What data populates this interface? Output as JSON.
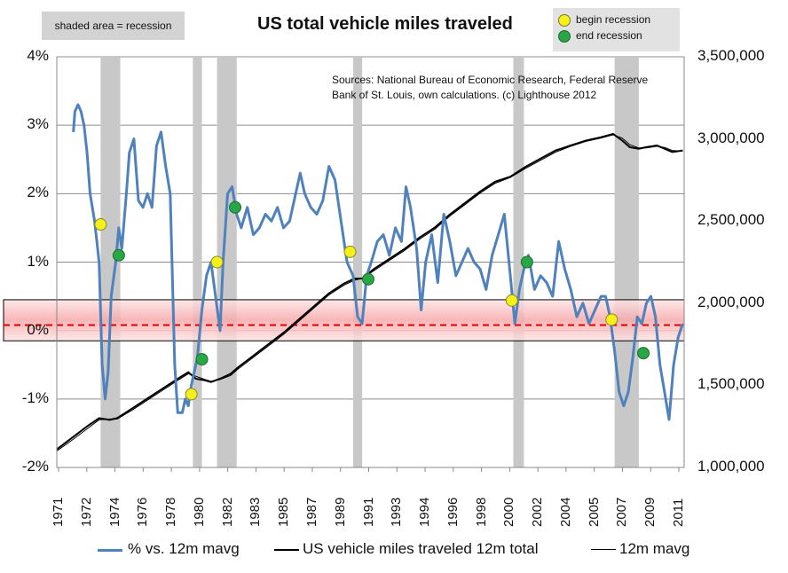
{
  "chart_data": {
    "type": "line",
    "title": "US total vehicle miles traveled",
    "shade_note": "shaded area = recession",
    "sources": "Sources: National Bureau of Economic Research, Federal Reserve Bank of St. Louis, own calculations. (c) Lighthouse 2012",
    "marker_legend": [
      {
        "label": "begin recession",
        "color": "#f5ef1a"
      },
      {
        "label": "end recession",
        "color": "#27a745"
      }
    ],
    "x_tick_labels": [
      "1971",
      "1972",
      "1974",
      "1976",
      "1978",
      "1980",
      "1982",
      "1983",
      "1985",
      "1987",
      "1989",
      "1991",
      "1993",
      "1994",
      "1996",
      "1998",
      "2000",
      "2002",
      "2004",
      "2005",
      "2007",
      "2009",
      "2011"
    ],
    "y_left": {
      "min": -0.02,
      "max": 0.04,
      "ticks": [
        "-2%",
        "-1%",
        "0%",
        "1%",
        "2%",
        "3%",
        "4%"
      ]
    },
    "y_right": {
      "min": 1000000,
      "max": 3500000,
      "ticks": [
        "1,000,000",
        "1,500,000",
        "2,000,000",
        "2,500,000",
        "3,000,000",
        "3,500,000"
      ]
    },
    "recessions": [
      [
        1973.9,
        1975.2
      ],
      [
        1980.0,
        1980.6
      ],
      [
        1981.6,
        1982.9
      ],
      [
        1990.6,
        1991.2
      ],
      [
        2001.2,
        2001.9
      ],
      [
        2007.9,
        2009.5
      ]
    ],
    "band": {
      "low": -0.0015,
      "high": 0.0045,
      "dashed": 0.0008
    },
    "series": [
      {
        "name": "% vs. 12m mavg",
        "axis": "left",
        "color": "#4f81bd",
        "x": [
          1972.1,
          1972.2,
          1972.4,
          1972.6,
          1972.8,
          1973.0,
          1973.2,
          1973.5,
          1973.8,
          1974.0,
          1974.2,
          1974.4,
          1974.6,
          1974.9,
          1975.1,
          1975.3,
          1975.6,
          1975.8,
          1976.1,
          1976.4,
          1976.7,
          1977.0,
          1977.3,
          1977.6,
          1977.9,
          1978.2,
          1978.5,
          1978.8,
          1979.0,
          1979.3,
          1979.5,
          1979.7,
          1979.9,
          1980.1,
          1980.3,
          1980.6,
          1980.9,
          1981.2,
          1981.5,
          1981.8,
          1982.0,
          1982.3,
          1982.6,
          1982.9,
          1983.2,
          1983.6,
          1984.0,
          1984.4,
          1984.8,
          1985.2,
          1985.6,
          1986.0,
          1986.4,
          1986.8,
          1987.1,
          1987.4,
          1987.8,
          1988.2,
          1988.6,
          1989.0,
          1989.4,
          1989.8,
          1990.2,
          1990.6,
          1990.9,
          1991.2,
          1991.5,
          1991.8,
          1992.2,
          1992.6,
          1993.0,
          1993.4,
          1993.8,
          1994.1,
          1994.4,
          1994.8,
          1995.1,
          1995.4,
          1995.8,
          1996.2,
          1996.6,
          1997.0,
          1997.4,
          1997.8,
          1998.2,
          1998.6,
          1999.0,
          1999.4,
          1999.8,
          2000.2,
          2000.6,
          2001.0,
          2001.3,
          2001.6,
          2001.9,
          2002.2,
          2002.6,
          2003.0,
          2003.4,
          2003.8,
          2004.2,
          2004.6,
          2005.0,
          2005.4,
          2005.8,
          2006.2,
          2006.6,
          2007.0,
          2007.3,
          2007.6,
          2007.9,
          2008.2,
          2008.5,
          2008.8,
          2009.1,
          2009.4,
          2009.7,
          2010.0,
          2010.3,
          2010.6,
          2010.9,
          2011.2,
          2011.5,
          2011.8,
          2012.1,
          2012.4
        ],
        "y": [
          0.029,
          0.032,
          0.033,
          0.032,
          0.03,
          0.026,
          0.02,
          0.016,
          0.01,
          -0.005,
          -0.01,
          -0.006,
          0.005,
          0.01,
          0.015,
          0.012,
          0.02,
          0.026,
          0.028,
          0.019,
          0.018,
          0.02,
          0.018,
          0.027,
          0.029,
          0.024,
          0.02,
          -0.005,
          -0.012,
          -0.012,
          -0.01,
          -0.011,
          -0.008,
          -0.006,
          -0.004,
          0.003,
          0.008,
          0.01,
          0.005,
          0.0,
          0.01,
          0.02,
          0.021,
          0.017,
          0.015,
          0.018,
          0.014,
          0.015,
          0.017,
          0.016,
          0.018,
          0.015,
          0.016,
          0.02,
          0.023,
          0.02,
          0.018,
          0.017,
          0.019,
          0.024,
          0.022,
          0.016,
          0.01,
          0.008,
          0.002,
          0.001,
          0.008,
          0.01,
          0.013,
          0.014,
          0.011,
          0.015,
          0.013,
          0.021,
          0.018,
          0.012,
          0.003,
          0.01,
          0.014,
          0.007,
          0.017,
          0.013,
          0.008,
          0.01,
          0.012,
          0.01,
          0.009,
          0.006,
          0.011,
          0.014,
          0.017,
          0.008,
          0.001,
          0.006,
          0.009,
          0.011,
          0.006,
          0.008,
          0.007,
          0.005,
          0.013,
          0.009,
          0.006,
          0.002,
          0.004,
          0.001,
          0.003,
          0.005,
          0.005,
          0.002,
          -0.003,
          -0.009,
          -0.011,
          -0.009,
          -0.004,
          0.002,
          0.001,
          0.004,
          0.005,
          0.002,
          -0.005,
          -0.009,
          -0.013,
          -0.005,
          -0.001,
          0.001
        ]
      },
      {
        "name": "US vehicle miles traveled 12m total",
        "axis": "right",
        "color": "#000000",
        "x": [
          1971.0,
          1972.0,
          1973.0,
          1973.8,
          1974.5,
          1975.0,
          1976.0,
          1977.0,
          1978.0,
          1979.0,
          1979.7,
          1980.2,
          1980.8,
          1981.2,
          1981.8,
          1982.5,
          1983.0,
          1984.0,
          1985.0,
          1986.0,
          1987.0,
          1988.0,
          1989.0,
          1990.0,
          1990.7,
          1991.2,
          1992.0,
          1993.0,
          1994.0,
          1995.0,
          1996.0,
          1997.0,
          1998.0,
          1999.0,
          2000.0,
          2001.0,
          2002.0,
          2003.0,
          2004.0,
          2005.0,
          2006.0,
          2007.0,
          2007.8,
          2008.4,
          2008.9,
          2009.5,
          2010.0,
          2010.7,
          2011.2,
          2011.7,
          2012.4
        ],
        "y": [
          1110000,
          1180000,
          1250000,
          1300000,
          1290000,
          1300000,
          1360000,
          1420000,
          1480000,
          1540000,
          1580000,
          1540000,
          1530000,
          1520000,
          1540000,
          1570000,
          1610000,
          1680000,
          1750000,
          1820000,
          1900000,
          1980000,
          2060000,
          2120000,
          2150000,
          2150000,
          2210000,
          2270000,
          2330000,
          2400000,
          2460000,
          2540000,
          2610000,
          2680000,
          2740000,
          2770000,
          2830000,
          2880000,
          2930000,
          2960000,
          2990000,
          3010000,
          3030000,
          2990000,
          2950000,
          2940000,
          2950000,
          2960000,
          2940000,
          2920000,
          2930000
        ]
      },
      {
        "name": "12m mavg",
        "axis": "right",
        "color": "#000000",
        "x": [
          1971.0,
          1972.0,
          1973.0,
          1973.8,
          1974.5,
          1975.0,
          1976.0,
          1977.0,
          1978.0,
          1979.0,
          1979.7,
          1980.2,
          1980.8,
          1981.2,
          1981.8,
          1982.5,
          1983.0,
          1984.0,
          1985.0,
          1986.0,
          1987.0,
          1988.0,
          1989.0,
          1990.0,
          1990.7,
          1991.2,
          1992.0,
          1993.0,
          1994.0,
          1995.0,
          1996.0,
          1997.0,
          1998.0,
          1999.0,
          2000.0,
          2001.0,
          2002.0,
          2003.0,
          2004.0,
          2005.0,
          2006.0,
          2007.0,
          2007.8,
          2008.4,
          2008.9,
          2009.5,
          2010.0,
          2010.7,
          2011.2,
          2011.7,
          2012.4
        ],
        "y": [
          1100000,
          1165000,
          1235000,
          1290000,
          1295000,
          1295000,
          1350000,
          1410000,
          1470000,
          1530000,
          1570000,
          1555000,
          1535000,
          1525000,
          1535000,
          1560000,
          1600000,
          1670000,
          1740000,
          1810000,
          1890000,
          1970000,
          2050000,
          2110000,
          2140000,
          2150000,
          2200000,
          2260000,
          2320000,
          2390000,
          2450000,
          2530000,
          2600000,
          2670000,
          2730000,
          2765000,
          2820000,
          2870000,
          2920000,
          2955000,
          2985000,
          3005000,
          3025000,
          3005000,
          2965000,
          2945000,
          2945000,
          2955000,
          2948000,
          2930000,
          2925000
        ]
      }
    ],
    "begin_markers": [
      [
        1973.9,
        0.0155
      ],
      [
        1979.9,
        -0.0093
      ],
      [
        1981.6,
        0.01
      ],
      [
        1990.4,
        0.0115
      ],
      [
        2001.1,
        0.0044
      ],
      [
        2007.7,
        0.0016
      ]
    ],
    "end_markers": [
      [
        1975.1,
        0.011
      ],
      [
        1980.6,
        -0.0042
      ],
      [
        1982.8,
        0.018
      ],
      [
        1991.6,
        0.0075
      ],
      [
        2002.1,
        0.01
      ],
      [
        2009.8,
        -0.0033
      ]
    ]
  }
}
